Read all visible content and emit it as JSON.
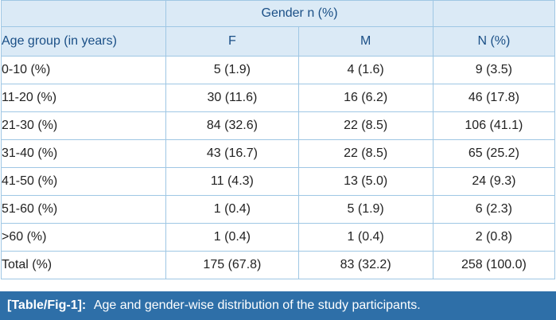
{
  "table": {
    "header": {
      "group": "Gender n (%)",
      "age_group": "Age group (in years)",
      "f": "F",
      "m": "M",
      "n": "N (%)"
    },
    "rows": [
      {
        "age": "0-10 (%)",
        "f": "5 (1.9)",
        "m": "4 (1.6)",
        "n": "9 (3.5)"
      },
      {
        "age": "11-20 (%)",
        "f": "30 (11.6)",
        "m": "16 (6.2)",
        "n": "46 (17.8)"
      },
      {
        "age": "21-30 (%)",
        "f": "84 (32.6)",
        "m": "22 (8.5)",
        "n": "106 (41.1)"
      },
      {
        "age": "31-40 (%)",
        "f": "43 (16.7)",
        "m": "22 (8.5)",
        "n": "65 (25.2)"
      },
      {
        "age": "41-50 (%)",
        "f": "11 (4.3)",
        "m": "13 (5.0)",
        "n": "24 (9.3)"
      },
      {
        "age": "51-60 (%)",
        "f": "1 (0.4)",
        "m": "5 (1.9)",
        "n": "6 (2.3)"
      },
      {
        "age": ">60 (%)",
        "f": "1 (0.4)",
        "m": "1 (0.4)",
        "n": "2 (0.8)"
      },
      {
        "age": "Total (%)",
        "f": "175 (67.8)",
        "m": "83 (32.2)",
        "n": "258 (100.0)"
      }
    ]
  },
  "caption": {
    "ref": "[Table/Fig-1]:",
    "text": "Age and gender-wise distribution of the study participants."
  },
  "colors": {
    "header_bg": "#dbeaf6",
    "header_text": "#1a4f86",
    "border": "#9fc7e4",
    "caption_bg": "#2e6fa8"
  }
}
